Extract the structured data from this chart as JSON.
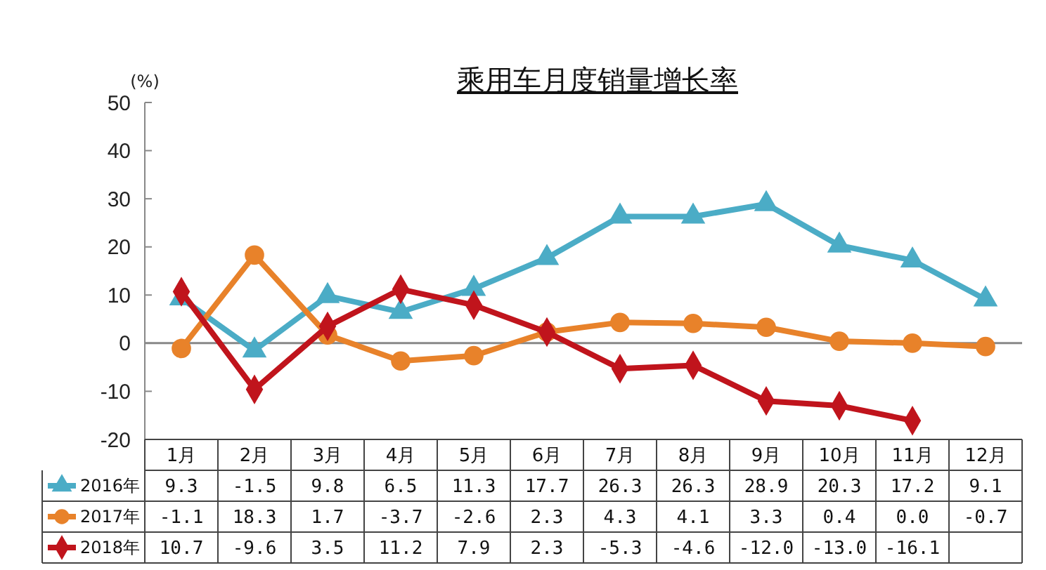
{
  "chart_data": {
    "type": "line",
    "title": "乘用车月度销量增长率",
    "ylabel": "(%)",
    "categories": [
      "1月",
      "2月",
      "3月",
      "4月",
      "5月",
      "6月",
      "7月",
      "8月",
      "9月",
      "10月",
      "11月",
      "12月"
    ],
    "series": [
      {
        "name": "2016年",
        "color": "#4bacc6",
        "marker": "triangle",
        "values": [
          9.3,
          -1.5,
          9.8,
          6.5,
          11.3,
          17.7,
          26.3,
          26.3,
          28.9,
          20.3,
          17.2,
          9.1
        ],
        "value_labels": [
          "9.3",
          "-1.5",
          "9.8",
          "6.5",
          "11.3",
          "17.7",
          "26.3",
          "26.3",
          "28.9",
          "20.3",
          "17.2",
          "9.1"
        ]
      },
      {
        "name": "2017年",
        "color": "#e8822a",
        "marker": "circle",
        "values": [
          -1.1,
          18.3,
          1.7,
          -3.7,
          -2.6,
          2.3,
          4.3,
          4.1,
          3.3,
          0.4,
          0.0,
          -0.7
        ],
        "value_labels": [
          "-1.1",
          "18.3",
          "1.7",
          "-3.7",
          "-2.6",
          "2.3",
          "4.3",
          "4.1",
          "3.3",
          "0.4",
          "0.0",
          "-0.7"
        ]
      },
      {
        "name": "2018年",
        "color": "#c0141c",
        "marker": "diamond",
        "values": [
          10.7,
          -9.6,
          3.5,
          11.2,
          7.9,
          2.3,
          -5.3,
          -4.6,
          -12.0,
          -13.0,
          -16.1,
          null
        ],
        "value_labels": [
          "10.7",
          "-9.6",
          "3.5",
          "11.2",
          "7.9",
          "2.3",
          "-5.3",
          "-4.6",
          "-12.0",
          "-13.0",
          "-16.1",
          null
        ]
      }
    ],
    "ylim": [
      -20,
      50
    ],
    "yticks": [
      -20,
      -10,
      0,
      10,
      20,
      30,
      40,
      50
    ],
    "legend": "bottom",
    "line_style": "solid"
  }
}
